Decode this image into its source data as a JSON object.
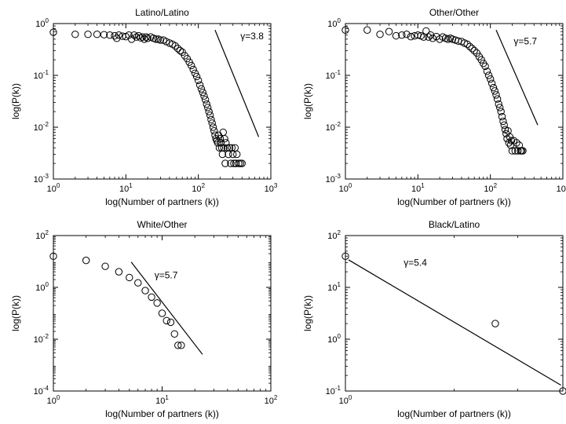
{
  "chart_data": [
    {
      "type": "scatter",
      "title": "Latino/Latino",
      "xlabel": "log(Number of partners (k))",
      "ylabel": "log(P(k))",
      "xscale": "log",
      "yscale": "log",
      "xlim": [
        1,
        1000
      ],
      "ylim": [
        0.001,
        1
      ],
      "xticks": [
        {
          "v": 1,
          "b": "10",
          "e": "0"
        },
        {
          "v": 10,
          "b": "10",
          "e": "1"
        },
        {
          "v": 100,
          "b": "10",
          "e": "2"
        },
        {
          "v": 1000,
          "b": "10",
          "e": "3"
        }
      ],
      "yticks": [
        {
          "v": 0.001,
          "b": "10",
          "e": "-3"
        },
        {
          "v": 0.01,
          "b": "10",
          "e": "-2"
        },
        {
          "v": 0.1,
          "b": "10",
          "e": "-1"
        },
        {
          "v": 1,
          "b": "10",
          "e": "0"
        }
      ],
      "annotation": "γ=3.8",
      "annotation_at": [
        380,
        0.5
      ],
      "fit_line": [
        [
          170,
          0.75
        ],
        [
          680,
          0.0065
        ]
      ],
      "series": [
        {
          "x": [
            1,
            2,
            3,
            4,
            5,
            6,
            7,
            7.5,
            8,
            9,
            10,
            11,
            12,
            13,
            14,
            15,
            16,
            17,
            18,
            19,
            20,
            22,
            24,
            26,
            28,
            30,
            33,
            36,
            40,
            44,
            48,
            52,
            56,
            60,
            65,
            70,
            75,
            80,
            85,
            90,
            95,
            100,
            105,
            110,
            115,
            120,
            125,
            130,
            135,
            140,
            145,
            150,
            155,
            160,
            165,
            170,
            175,
            180,
            185,
            190,
            195,
            200,
            205,
            210,
            215,
            220,
            225,
            230,
            235,
            240,
            250,
            260,
            270,
            280,
            290,
            300,
            310,
            320,
            330,
            340,
            360,
            380,
            400
          ],
          "y": [
            0.68,
            0.62,
            0.62,
            0.62,
            0.61,
            0.6,
            0.58,
            0.52,
            0.6,
            0.57,
            0.56,
            0.6,
            0.5,
            0.6,
            0.55,
            0.58,
            0.53,
            0.55,
            0.5,
            0.55,
            0.52,
            0.55,
            0.52,
            0.5,
            0.5,
            0.48,
            0.48,
            0.45,
            0.42,
            0.4,
            0.37,
            0.33,
            0.3,
            0.28,
            0.24,
            0.21,
            0.18,
            0.155,
            0.13,
            0.11,
            0.095,
            0.08,
            0.065,
            0.055,
            0.047,
            0.04,
            0.034,
            0.028,
            0.024,
            0.02,
            0.017,
            0.014,
            0.012,
            0.01,
            0.0085,
            0.007,
            0.006,
            0.0055,
            0.005,
            0.007,
            0.004,
            0.006,
            0.005,
            0.004,
            0.003,
            0.008,
            0.004,
            0.006,
            0.002,
            0.005,
            0.004,
            0.003,
            0.004,
            0.002,
            0.004,
            0.003,
            0.002,
            0.004,
            0.002,
            0.003,
            0.002,
            0.002,
            0.002
          ]
        }
      ]
    },
    {
      "type": "scatter",
      "title": "Other/Other",
      "xlabel": "log(Number of partners (k))",
      "ylabel": "log(P(k))",
      "xscale": "log",
      "yscale": "log",
      "xlim": [
        1,
        1000
      ],
      "ylim": [
        0.001,
        1
      ],
      "xticks": [
        {
          "v": 1,
          "b": "10",
          "e": "0"
        },
        {
          "v": 10,
          "b": "10",
          "e": "1"
        },
        {
          "v": 100,
          "b": "10",
          "e": "2"
        },
        {
          "v": 1000,
          "b": "10",
          "e": "3"
        }
      ],
      "yticks": [
        {
          "v": 0.001,
          "b": "10",
          "e": "-3"
        },
        {
          "v": 0.01,
          "b": "10",
          "e": "-2"
        },
        {
          "v": 0.1,
          "b": "10",
          "e": "-1"
        },
        {
          "v": 1,
          "b": "10",
          "e": "0"
        }
      ],
      "annotation": "γ=5.7",
      "annotation_at": [
        210,
        0.4
      ],
      "fit_line": [
        [
          120,
          0.75
        ],
        [
          450,
          0.011
        ]
      ],
      "series": [
        {
          "x": [
            1,
            2,
            3,
            4,
            5,
            6,
            7,
            8,
            9,
            10,
            11,
            12,
            13,
            14,
            15,
            16,
            18,
            20,
            22,
            24,
            26,
            28,
            30,
            33,
            36,
            40,
            44,
            48,
            52,
            56,
            60,
            65,
            70,
            75,
            80,
            85,
            90,
            95,
            100,
            105,
            110,
            115,
            120,
            125,
            130,
            135,
            140,
            145,
            150,
            155,
            160,
            165,
            170,
            175,
            180,
            185,
            190,
            195,
            200,
            210,
            220,
            230,
            240,
            250,
            260,
            270,
            280
          ],
          "y": [
            0.75,
            0.75,
            0.62,
            0.7,
            0.58,
            0.6,
            0.62,
            0.56,
            0.58,
            0.6,
            0.58,
            0.55,
            0.72,
            0.55,
            0.6,
            0.52,
            0.56,
            0.5,
            0.55,
            0.52,
            0.5,
            0.52,
            0.5,
            0.48,
            0.46,
            0.45,
            0.42,
            0.4,
            0.36,
            0.33,
            0.3,
            0.27,
            0.23,
            0.2,
            0.17,
            0.15,
            0.12,
            0.1,
            0.085,
            0.07,
            0.058,
            0.05,
            0.042,
            0.035,
            0.028,
            0.024,
            0.02,
            0.016,
            0.013,
            0.011,
            0.009,
            0.0075,
            0.006,
            0.0085,
            0.005,
            0.0065,
            0.0045,
            0.0055,
            0.0035,
            0.0055,
            0.0035,
            0.005,
            0.0035,
            0.0045,
            0.0035,
            0.0035,
            0.0035
          ]
        }
      ]
    },
    {
      "type": "scatter",
      "title": "White/Other",
      "xlabel": "log(Number of partners (k))",
      "ylabel": "log(P(k))",
      "xscale": "log",
      "yscale": "log",
      "xlim": [
        1,
        100
      ],
      "ylim": [
        0.0001,
        100
      ],
      "xticks": [
        {
          "v": 1,
          "b": "10",
          "e": "0"
        },
        {
          "v": 10,
          "b": "10",
          "e": "1"
        },
        {
          "v": 100,
          "b": "10",
          "e": "2"
        }
      ],
      "yticks": [
        {
          "v": 0.0001,
          "b": "10",
          "e": "-4"
        },
        {
          "v": 0.01,
          "b": "10",
          "e": "-2"
        },
        {
          "v": 1,
          "b": "10",
          "e": "0"
        },
        {
          "v": 100,
          "b": "10",
          "e": "2"
        }
      ],
      "annotation": "γ=5.7",
      "annotation_at": [
        8.5,
        2.2
      ],
      "fit_line": [
        [
          5.2,
          9.5
        ],
        [
          23.5,
          0.0026
        ]
      ],
      "series": [
        {
          "x": [
            1,
            2,
            3,
            4,
            5,
            6,
            7,
            8,
            9,
            10,
            11,
            12,
            13,
            14,
            15
          ],
          "y": [
            16,
            11,
            6.5,
            4,
            2.4,
            1.5,
            0.75,
            0.42,
            0.25,
            0.1,
            0.052,
            0.045,
            0.016,
            0.0058,
            0.0058
          ]
        }
      ]
    },
    {
      "type": "scatter",
      "title": "Black/Latino",
      "xlabel": "log(Number of partners (k))",
      "ylabel": "log(P(k))",
      "xscale": "log",
      "yscale": "log",
      "xlim": [
        1,
        4
      ],
      "ylim": [
        0.1,
        100
      ],
      "xticks": [
        {
          "v": 1,
          "b": "10",
          "e": "0"
        }
      ],
      "yticks": [
        {
          "v": 0.1,
          "b": "10",
          "e": "-1"
        },
        {
          "v": 1,
          "b": "10",
          "e": "0"
        },
        {
          "v": 10,
          "b": "10",
          "e": "1"
        },
        {
          "v": 100,
          "b": "10",
          "e": "2"
        }
      ],
      "annotation": "γ=5.4",
      "annotation_at": [
        1.45,
        26
      ],
      "fit_line": [
        [
          1.02,
          34
        ],
        [
          3.95,
          0.13
        ]
      ],
      "series": [
        {
          "x": [
            1,
            2.6,
            4
          ],
          "y": [
            40,
            2,
            0.1
          ]
        }
      ]
    }
  ]
}
